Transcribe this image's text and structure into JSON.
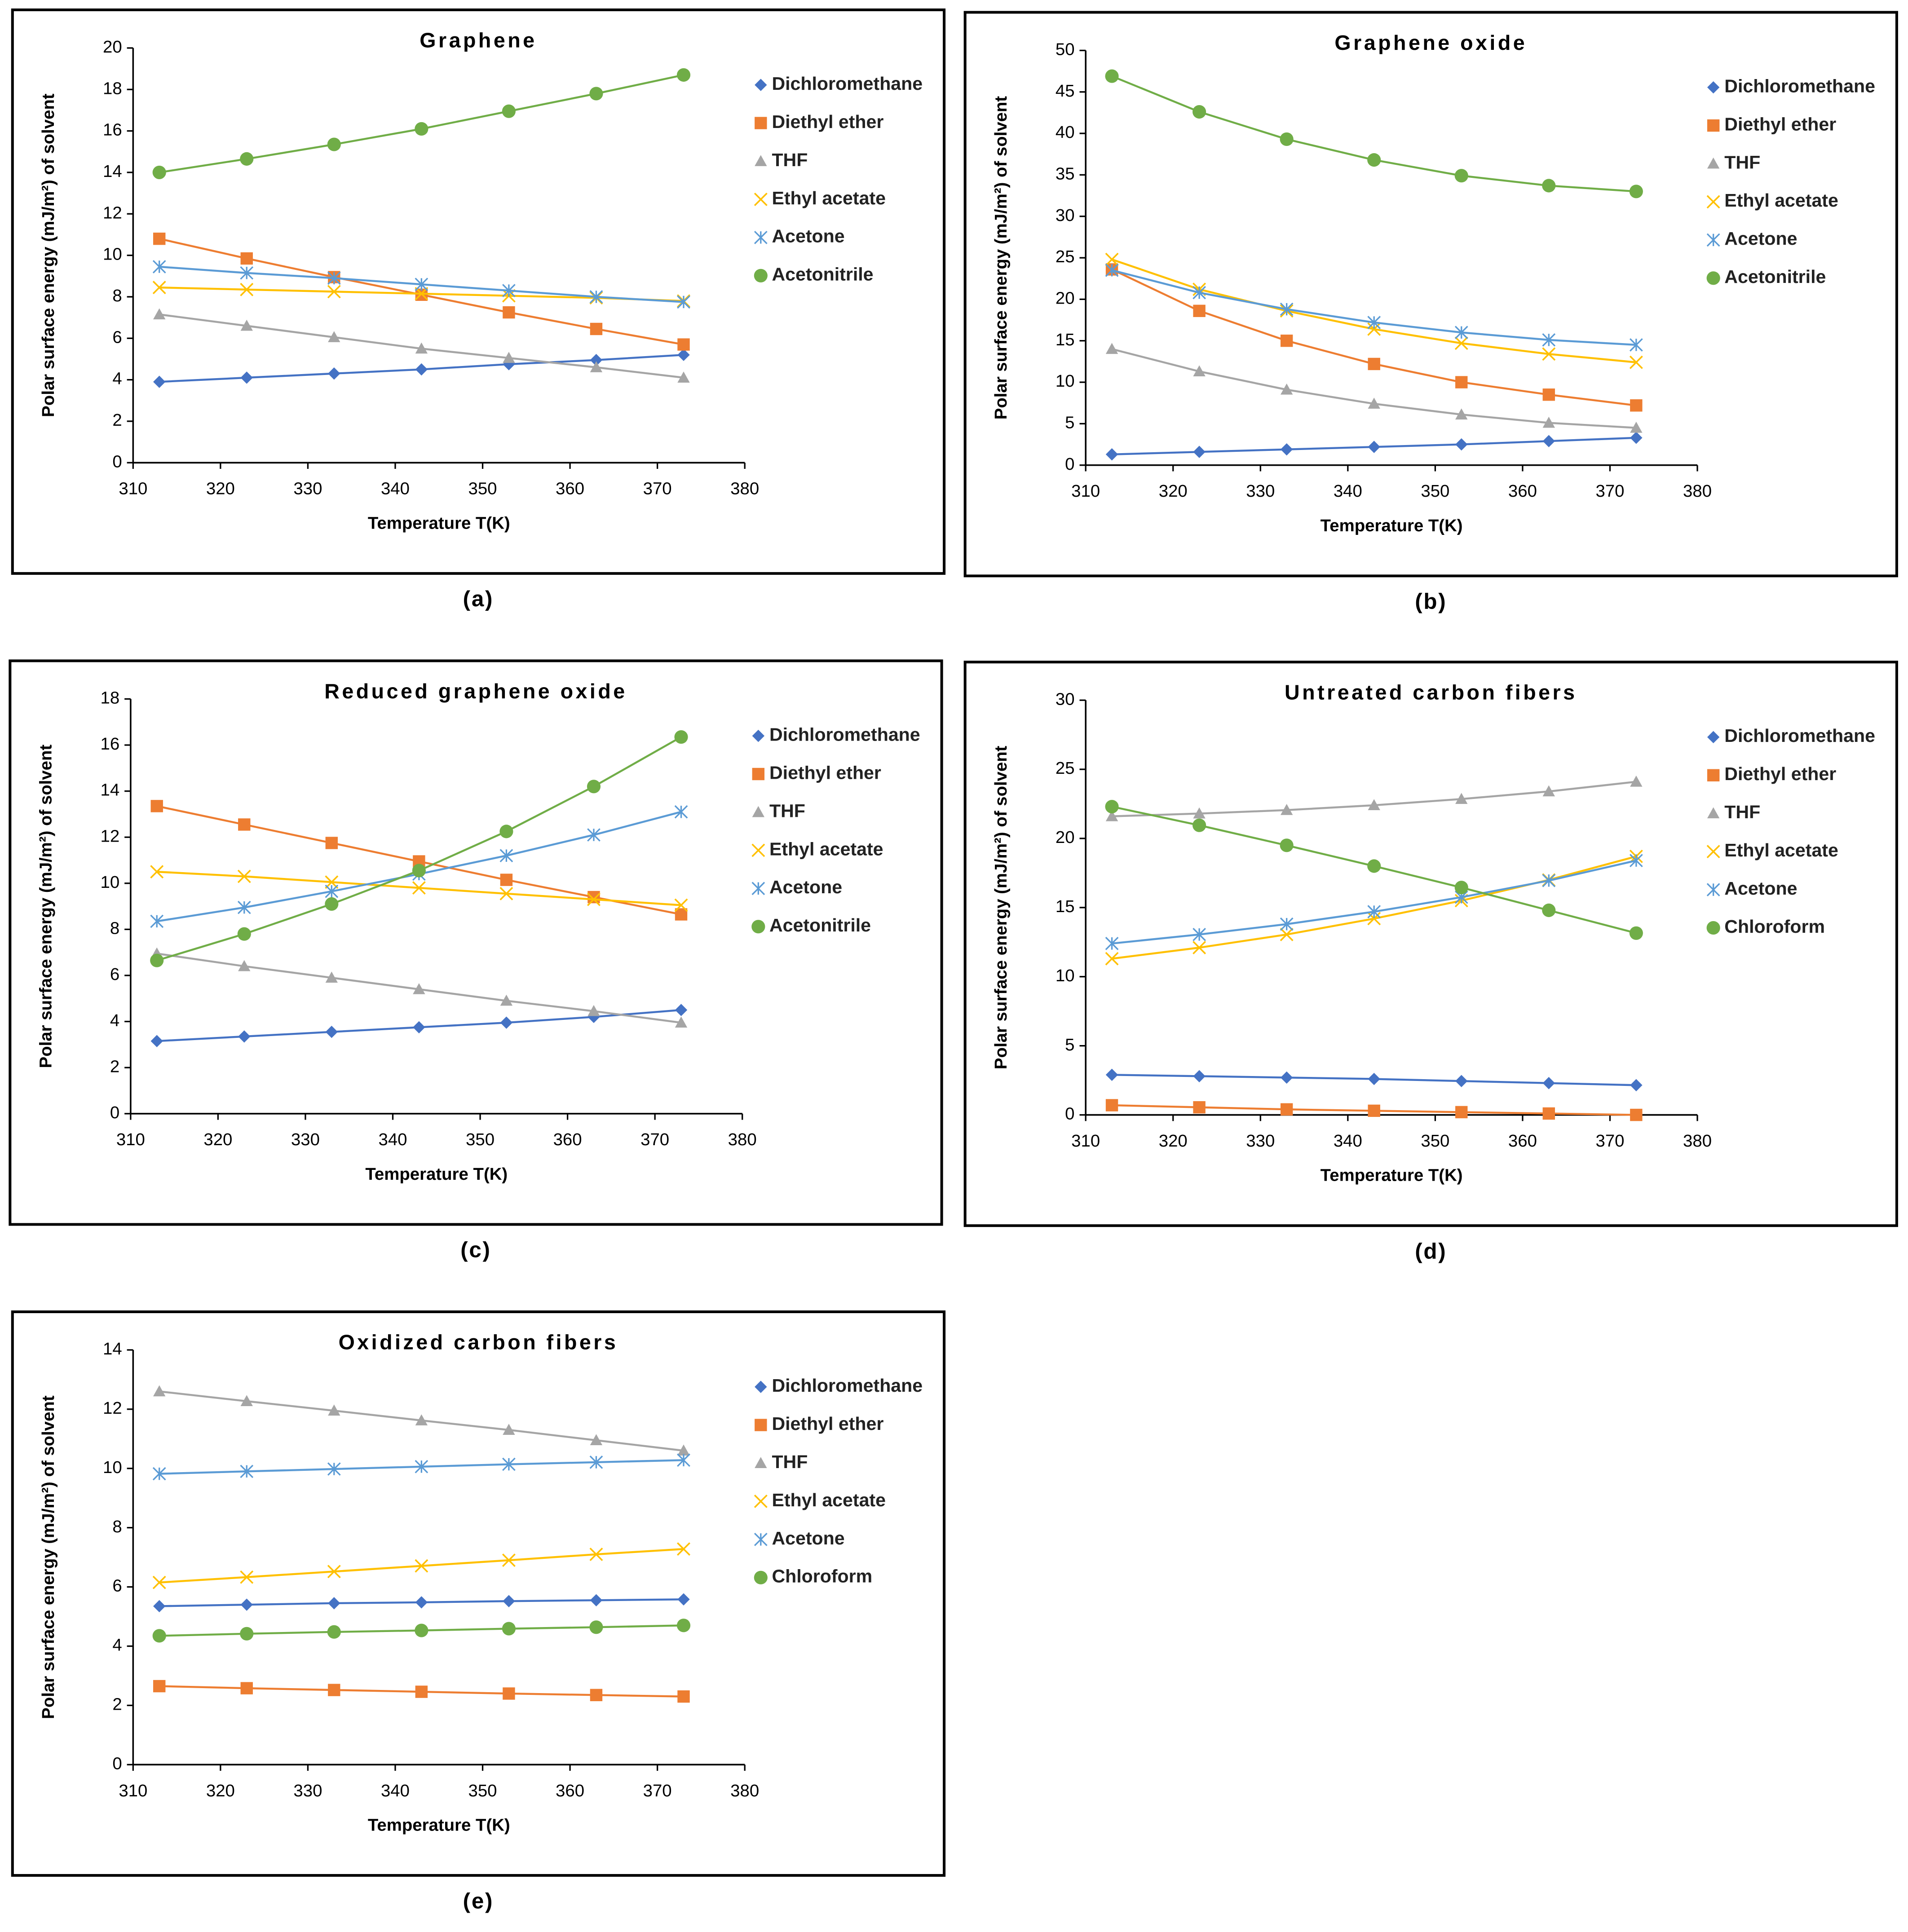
{
  "chart_data": [
    {
      "type": "line",
      "title": "Graphene",
      "panel_label": "(a)",
      "xlabel": "Temperature T(K)",
      "ylabel": "Polar surface energy (mJ/m²) of solvent",
      "x": [
        313,
        323,
        333,
        343,
        353,
        363,
        373
      ],
      "xlim": [
        310,
        380
      ],
      "xticks": [
        310,
        320,
        330,
        340,
        350,
        360,
        370,
        380
      ],
      "ylim": [
        0,
        20
      ],
      "yticks": [
        0,
        2,
        4,
        6,
        8,
        10,
        12,
        14,
        16,
        18,
        20
      ],
      "series": [
        {
          "name": "Dichloromethane",
          "color": "#4472c4",
          "marker": "diamond",
          "values": [
            3.9,
            4.1,
            4.3,
            4.5,
            4.75,
            4.95,
            5.2
          ]
        },
        {
          "name": "Diethyl ether",
          "color": "#ed7d31",
          "marker": "square",
          "values": [
            10.8,
            9.85,
            8.95,
            8.1,
            7.25,
            6.45,
            5.7
          ]
        },
        {
          "name": "THF",
          "color": "#a5a5a5",
          "marker": "triangle",
          "values": [
            7.15,
            6.6,
            6.05,
            5.5,
            5.05,
            4.6,
            4.1
          ]
        },
        {
          "name": "Ethyl acetate",
          "color": "#ffc000",
          "marker": "x",
          "values": [
            8.45,
            8.35,
            8.25,
            8.15,
            8.05,
            7.95,
            7.8
          ]
        },
        {
          "name": "Acetone",
          "color": "#5b9bd5",
          "marker": "asterisk",
          "values": [
            9.45,
            9.15,
            8.9,
            8.6,
            8.3,
            8.0,
            7.75
          ]
        },
        {
          "name": "Acetonitrile",
          "color": "#70ad47",
          "marker": "circle",
          "values": [
            14.0,
            14.65,
            15.35,
            16.1,
            16.95,
            17.8,
            18.7
          ]
        }
      ]
    },
    {
      "type": "line",
      "title": "Graphene oxide",
      "panel_label": "(b)",
      "xlabel": "Temperature T(K)",
      "ylabel": "Polar surface energy (mJ/m²) of solvent",
      "x": [
        313,
        323,
        333,
        343,
        353,
        363,
        373
      ],
      "xlim": [
        310,
        380
      ],
      "xticks": [
        310,
        320,
        330,
        340,
        350,
        360,
        370,
        380
      ],
      "ylim": [
        0,
        50
      ],
      "yticks": [
        0,
        5,
        10,
        15,
        20,
        25,
        30,
        35,
        40,
        45,
        50
      ],
      "series": [
        {
          "name": "Dichloromethane",
          "color": "#4472c4",
          "marker": "diamond",
          "values": [
            1.3,
            1.6,
            1.9,
            2.2,
            2.5,
            2.9,
            3.3
          ]
        },
        {
          "name": "Diethyl ether",
          "color": "#ed7d31",
          "marker": "square",
          "values": [
            23.6,
            18.6,
            15.0,
            12.2,
            10.0,
            8.5,
            7.2
          ]
        },
        {
          "name": "THF",
          "color": "#a5a5a5",
          "marker": "triangle",
          "values": [
            14.0,
            11.3,
            9.1,
            7.4,
            6.1,
            5.1,
            4.5
          ]
        },
        {
          "name": "Ethyl acetate",
          "color": "#ffc000",
          "marker": "x",
          "values": [
            24.8,
            21.2,
            18.6,
            16.4,
            14.7,
            13.4,
            12.4
          ]
        },
        {
          "name": "Acetone",
          "color": "#5b9bd5",
          "marker": "asterisk",
          "values": [
            23.5,
            20.8,
            18.8,
            17.2,
            16.0,
            15.1,
            14.5
          ]
        },
        {
          "name": "Acetonitrile",
          "color": "#70ad47",
          "marker": "circle",
          "values": [
            46.9,
            42.6,
            39.3,
            36.8,
            34.9,
            33.7,
            33.0
          ]
        }
      ]
    },
    {
      "type": "line",
      "title": "Reduced graphene oxide",
      "panel_label": "(c)",
      "xlabel": "Temperature T(K)",
      "ylabel": "Polar surface energy (mJ/m²) of solvent",
      "x": [
        313,
        323,
        333,
        343,
        353,
        363,
        373
      ],
      "xlim": [
        310,
        380
      ],
      "xticks": [
        310,
        320,
        330,
        340,
        350,
        360,
        370,
        380
      ],
      "ylim": [
        0,
        18
      ],
      "yticks": [
        0,
        2,
        4,
        6,
        8,
        10,
        12,
        14,
        16,
        18
      ],
      "series": [
        {
          "name": "Dichloromethane",
          "color": "#4472c4",
          "marker": "diamond",
          "values": [
            3.15,
            3.35,
            3.55,
            3.75,
            3.95,
            4.2,
            4.5
          ]
        },
        {
          "name": "Diethyl ether",
          "color": "#ed7d31",
          "marker": "square",
          "values": [
            13.35,
            12.55,
            11.75,
            10.95,
            10.15,
            9.4,
            8.65
          ]
        },
        {
          "name": "THF",
          "color": "#a5a5a5",
          "marker": "triangle",
          "values": [
            6.95,
            6.4,
            5.9,
            5.4,
            4.9,
            4.45,
            3.95
          ]
        },
        {
          "name": "Ethyl acetate",
          "color": "#ffc000",
          "marker": "x",
          "values": [
            10.5,
            10.3,
            10.05,
            9.8,
            9.55,
            9.3,
            9.05
          ]
        },
        {
          "name": "Acetone",
          "color": "#5b9bd5",
          "marker": "asterisk",
          "values": [
            8.35,
            8.95,
            9.65,
            10.4,
            11.2,
            12.1,
            13.1
          ]
        },
        {
          "name": "Acetonitrile",
          "color": "#70ad47",
          "marker": "circle",
          "values": [
            6.65,
            7.8,
            9.1,
            10.55,
            12.25,
            14.2,
            16.35
          ]
        }
      ]
    },
    {
      "type": "line",
      "title": "Untreated carbon fibers",
      "panel_label": "(d)",
      "xlabel": "Temperature T(K)",
      "ylabel": "Polar surface energy (mJ/m²) of solvent",
      "x": [
        313,
        323,
        333,
        343,
        353,
        363,
        373
      ],
      "xlim": [
        310,
        380
      ],
      "xticks": [
        310,
        320,
        330,
        340,
        350,
        360,
        370,
        380
      ],
      "ylim": [
        0,
        30
      ],
      "yticks": [
        0,
        5,
        10,
        15,
        20,
        25,
        30
      ],
      "series": [
        {
          "name": "Dichloromethane",
          "color": "#4472c4",
          "marker": "diamond",
          "values": [
            2.9,
            2.8,
            2.7,
            2.6,
            2.45,
            2.3,
            2.15
          ]
        },
        {
          "name": "Diethyl ether",
          "color": "#ed7d31",
          "marker": "square",
          "values": [
            0.7,
            0.55,
            0.4,
            0.3,
            0.2,
            0.1,
            0.0
          ]
        },
        {
          "name": "THF",
          "color": "#a5a5a5",
          "marker": "triangle",
          "values": [
            21.6,
            21.8,
            22.05,
            22.4,
            22.85,
            23.4,
            24.1
          ]
        },
        {
          "name": "Ethyl acetate",
          "color": "#ffc000",
          "marker": "x",
          "values": [
            11.3,
            12.1,
            13.05,
            14.2,
            15.5,
            17.0,
            18.7
          ]
        },
        {
          "name": "Acetone",
          "color": "#5b9bd5",
          "marker": "asterisk",
          "values": [
            12.4,
            13.05,
            13.8,
            14.7,
            15.75,
            16.95,
            18.4
          ]
        },
        {
          "name": "Chloroform",
          "color": "#70ad47",
          "marker": "circle",
          "values": [
            22.3,
            20.95,
            19.5,
            18.0,
            16.45,
            14.8,
            13.15
          ]
        }
      ]
    },
    {
      "type": "line",
      "title": "Oxidized carbon fibers",
      "panel_label": "(e)",
      "xlabel": "Temperature T(K)",
      "ylabel": "Polar surface energy (mJ/m²) of solvent",
      "x": [
        313,
        323,
        333,
        343,
        353,
        363,
        373
      ],
      "xlim": [
        310,
        380
      ],
      "xticks": [
        310,
        320,
        330,
        340,
        350,
        360,
        370,
        380
      ],
      "ylim": [
        0,
        14
      ],
      "yticks": [
        0,
        2,
        4,
        6,
        8,
        10,
        12,
        14
      ],
      "series": [
        {
          "name": "Dichloromethane",
          "color": "#4472c4",
          "marker": "diamond",
          "values": [
            5.35,
            5.4,
            5.45,
            5.48,
            5.52,
            5.55,
            5.58
          ]
        },
        {
          "name": "Diethyl ether",
          "color": "#ed7d31",
          "marker": "square",
          "values": [
            2.65,
            2.58,
            2.52,
            2.46,
            2.4,
            2.35,
            2.3
          ]
        },
        {
          "name": "THF",
          "color": "#a5a5a5",
          "marker": "triangle",
          "values": [
            12.6,
            12.27,
            11.95,
            11.62,
            11.3,
            10.95,
            10.6
          ]
        },
        {
          "name": "Ethyl acetate",
          "color": "#ffc000",
          "marker": "x",
          "values": [
            6.15,
            6.33,
            6.52,
            6.71,
            6.9,
            7.1,
            7.28
          ]
        },
        {
          "name": "Acetone",
          "color": "#5b9bd5",
          "marker": "asterisk",
          "values": [
            9.82,
            9.9,
            9.98,
            10.06,
            10.14,
            10.21,
            10.28
          ]
        },
        {
          "name": "Chloroform",
          "color": "#70ad47",
          "marker": "circle",
          "values": [
            4.35,
            4.42,
            4.48,
            4.53,
            4.59,
            4.64,
            4.7
          ]
        }
      ]
    }
  ]
}
